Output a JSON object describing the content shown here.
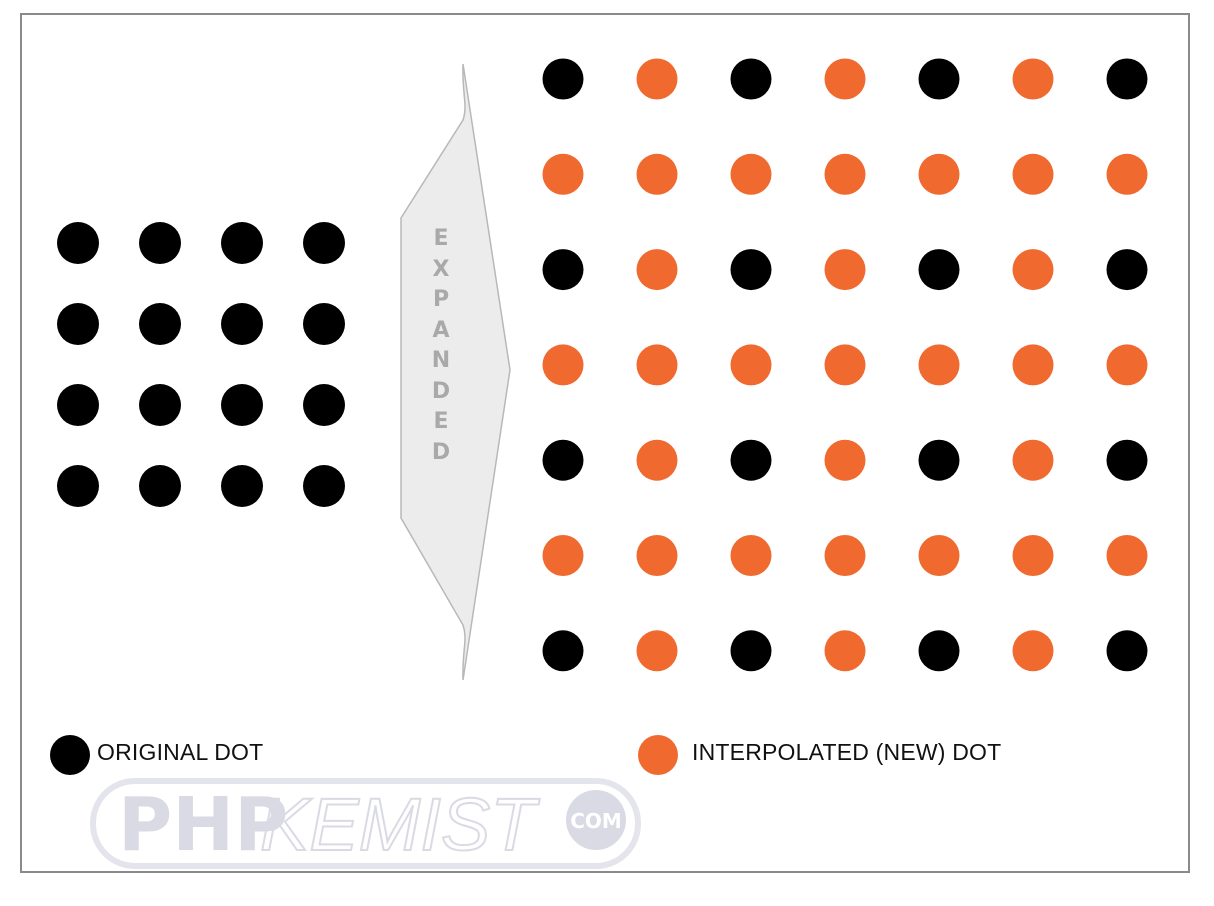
{
  "colors": {
    "original_dot": "#000000",
    "interpolated_dot": "#f0692f",
    "arrow_fill": "#ececec",
    "arrow_stroke": "#b8b8b8",
    "arrow_text": "#a9a9a9",
    "watermark": "#dcdce6"
  },
  "original_grid": {
    "rows": 4,
    "cols": 4
  },
  "expanded_grid": {
    "rows": 7,
    "cols": 7
  },
  "arrow": {
    "letters": [
      "E",
      "X",
      "P",
      "A",
      "N",
      "D",
      "E",
      "D"
    ]
  },
  "legend": {
    "original_label": "ORIGINAL DOT",
    "interpolated_label": "INTERPOLATED (NEW) DOT"
  },
  "watermark": {
    "prefix": "PHP",
    "main": "KEMIST",
    "suffix": "COM"
  }
}
